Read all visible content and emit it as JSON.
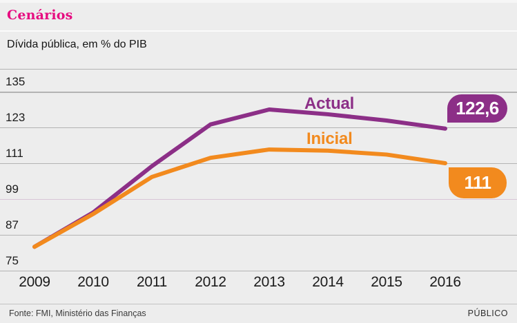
{
  "header": {
    "title": "Cenários"
  },
  "subtitle": "Dívida pública, em % do PIB",
  "chart_data": {
    "type": "line",
    "title": "Cenários",
    "ylabel": "Dívida pública, em % do PIB",
    "x_labels": [
      "2009",
      "2010",
      "2011",
      "2012",
      "2013",
      "2014",
      "2015",
      "2016"
    ],
    "yticks": [
      135,
      123,
      111,
      99,
      87,
      75
    ],
    "pink_gridline_value": 99,
    "ylim": [
      75,
      135
    ],
    "grid": true,
    "legend_position": "inline-labels-above-lines",
    "series": [
      {
        "name": "Actual",
        "color": "#8c2f87",
        "values": [
          83,
          94.5,
          110,
          124,
          129,
          127.4,
          125.3,
          122.6
        ],
        "end_label": "122,6"
      },
      {
        "name": "Inicial",
        "color": "#f28a1e",
        "values": [
          83,
          94,
          106.4,
          112.8,
          115.6,
          115.2,
          113.9,
          111
        ],
        "end_label": "111"
      }
    ]
  },
  "footer": {
    "source": "Fonte: FMI, Ministério das Finanças",
    "brand": "PÚBLICO"
  },
  "colors": {
    "title_pink": "#e60c80",
    "background": "#ededed",
    "gridline": "#b3b3b3",
    "pink_gridline": "#d8c4d7",
    "actual_purple": "#8c2f87",
    "inicial_orange": "#f28a1e",
    "badge_text": "#ffffff"
  }
}
